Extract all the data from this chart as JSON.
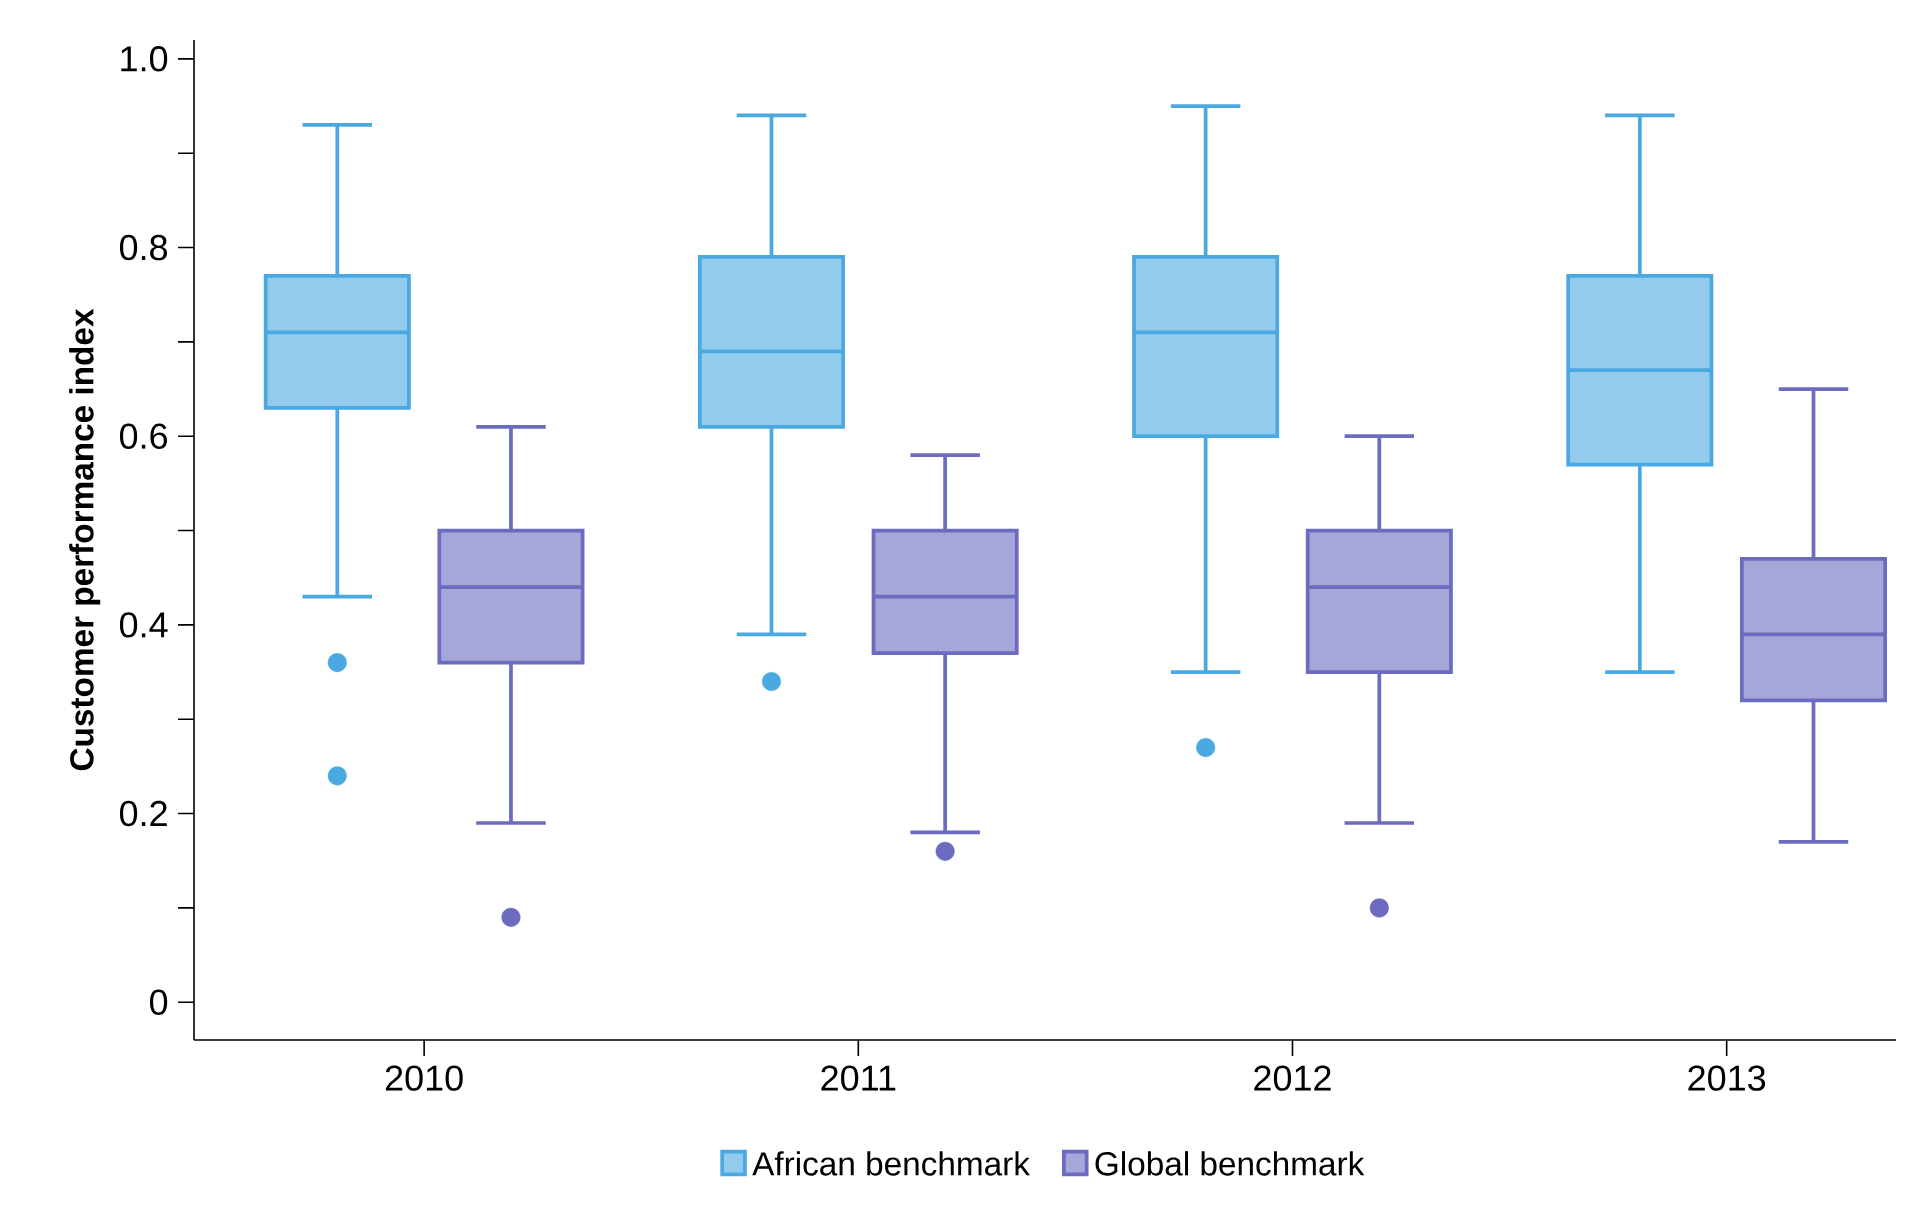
{
  "chart_data": {
    "type": "box",
    "ylabel": "Customer performance index",
    "categories": [
      "2010",
      "2011",
      "2012",
      "2013"
    ],
    "series": [
      {
        "name": "African benchmark",
        "color": "#4aa9e0",
        "boxes": [
          {
            "low": 0.43,
            "q1": 0.63,
            "median": 0.71,
            "q3": 0.77,
            "high": 0.93,
            "outliers": [
              0.36,
              0.24
            ]
          },
          {
            "low": 0.39,
            "q1": 0.61,
            "median": 0.69,
            "q3": 0.79,
            "high": 0.94,
            "outliers": [
              0.34
            ]
          },
          {
            "low": 0.35,
            "q1": 0.6,
            "median": 0.71,
            "q3": 0.79,
            "high": 0.95,
            "outliers": [
              0.27
            ]
          },
          {
            "low": 0.35,
            "q1": 0.57,
            "median": 0.67,
            "q3": 0.77,
            "high": 0.94
          }
        ]
      },
      {
        "name": "Global benchmark",
        "color": "#6b6bbf",
        "boxes": [
          {
            "low": 0.19,
            "q1": 0.36,
            "median": 0.44,
            "q3": 0.5,
            "high": 0.61,
            "outliers": [
              0.09
            ]
          },
          {
            "low": 0.18,
            "q1": 0.37,
            "median": 0.43,
            "q3": 0.5,
            "high": 0.58,
            "outliers": [
              0.16
            ]
          },
          {
            "low": 0.19,
            "q1": 0.35,
            "median": 0.44,
            "q3": 0.5,
            "high": 0.6,
            "outliers": [
              0.1
            ]
          },
          {
            "low": 0.17,
            "q1": 0.32,
            "median": 0.39,
            "q3": 0.47,
            "high": 0.65
          }
        ]
      }
    ],
    "ylim": [
      -0.04,
      1.02
    ],
    "yticks": [
      0,
      {
        "value": 0.1,
        "label": null
      },
      0.2,
      {
        "value": 0.3,
        "label": null
      },
      0.4,
      {
        "value": 0.5,
        "label": null
      },
      0.6,
      {
        "value": 0.7,
        "label": null
      },
      0.8,
      {
        "value": 0.9,
        "label": null
      },
      {
        "value": 1,
        "label": "1.0"
      }
    ],
    "legend": "bottom"
  }
}
